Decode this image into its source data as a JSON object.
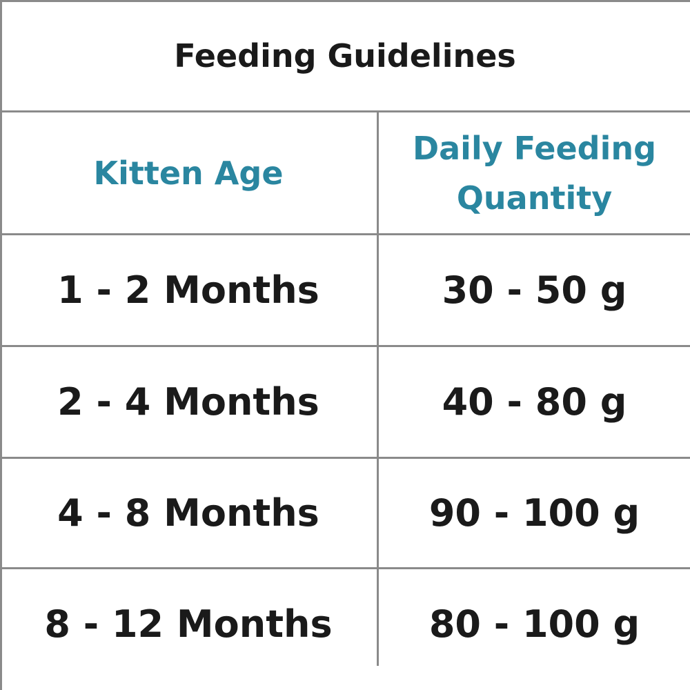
{
  "title": "Feeding Guidelines",
  "table": {
    "header": [
      "Kitten Age",
      "Daily Feeding Quantity"
    ],
    "rows": [
      [
        "1 - 2 Months",
        "30 - 50 g"
      ],
      [
        "2 - 4 Months",
        "40 - 80 g"
      ],
      [
        "4 - 8 Months",
        "90 - 100 g"
      ],
      [
        "8 - 12 Months",
        "80 - 100 g"
      ]
    ]
  }
}
